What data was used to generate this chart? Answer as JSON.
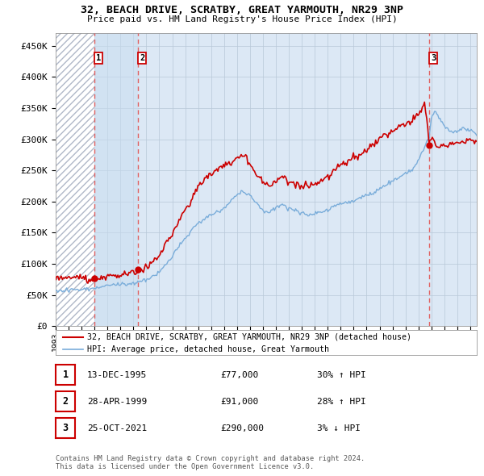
{
  "title": "32, BEACH DRIVE, SCRATBY, GREAT YARMOUTH, NR29 3NP",
  "subtitle": "Price paid vs. HM Land Registry's House Price Index (HPI)",
  "yticks": [
    0,
    50000,
    100000,
    150000,
    200000,
    250000,
    300000,
    350000,
    400000,
    450000
  ],
  "ytick_labels": [
    "£0",
    "£50K",
    "£100K",
    "£150K",
    "£200K",
    "£250K",
    "£300K",
    "£350K",
    "£400K",
    "£450K"
  ],
  "xlim_start": 1993.0,
  "xlim_end": 2025.5,
  "ylim": [
    0,
    470000
  ],
  "purchases": [
    {
      "date_num": 1995.96,
      "price": 77000,
      "label": "1",
      "date_str": "13-DEC-1995",
      "price_str": "£77,000",
      "hpi": "30% ↑ HPI"
    },
    {
      "date_num": 1999.32,
      "price": 91000,
      "label": "2",
      "date_str": "28-APR-1999",
      "price_str": "£91,000",
      "hpi": "28% ↑ HPI"
    },
    {
      "date_num": 2021.81,
      "price": 290000,
      "label": "3",
      "date_str": "25-OCT-2021",
      "price_str": "£290,000",
      "hpi": "3% ↓ HPI"
    }
  ],
  "background_color": "#ffffff",
  "plot_bg_color": "#dce8f5",
  "hatch_color": "#b0b8c8",
  "grid_color": "#b8c8d8",
  "red_line_color": "#cc0000",
  "blue_line_color": "#7aadda",
  "vline_color": "#e06060",
  "legend_line1": "32, BEACH DRIVE, SCRATBY, GREAT YARMOUTH, NR29 3NP (detached house)",
  "legend_line2": "HPI: Average price, detached house, Great Yarmouth",
  "footnote": "Contains HM Land Registry data © Crown copyright and database right 2024.\nThis data is licensed under the Open Government Licence v3.0.",
  "table_rows": [
    {
      "num": "1",
      "date": "13-DEC-1995",
      "price": "£77,000",
      "hpi": "30% ↑ HPI"
    },
    {
      "num": "2",
      "date": "28-APR-1999",
      "price": "£91,000",
      "hpi": "28% ↑ HPI"
    },
    {
      "num": "3",
      "date": "25-OCT-2021",
      "price": "£290,000",
      "hpi": "3% ↓ HPI"
    }
  ]
}
